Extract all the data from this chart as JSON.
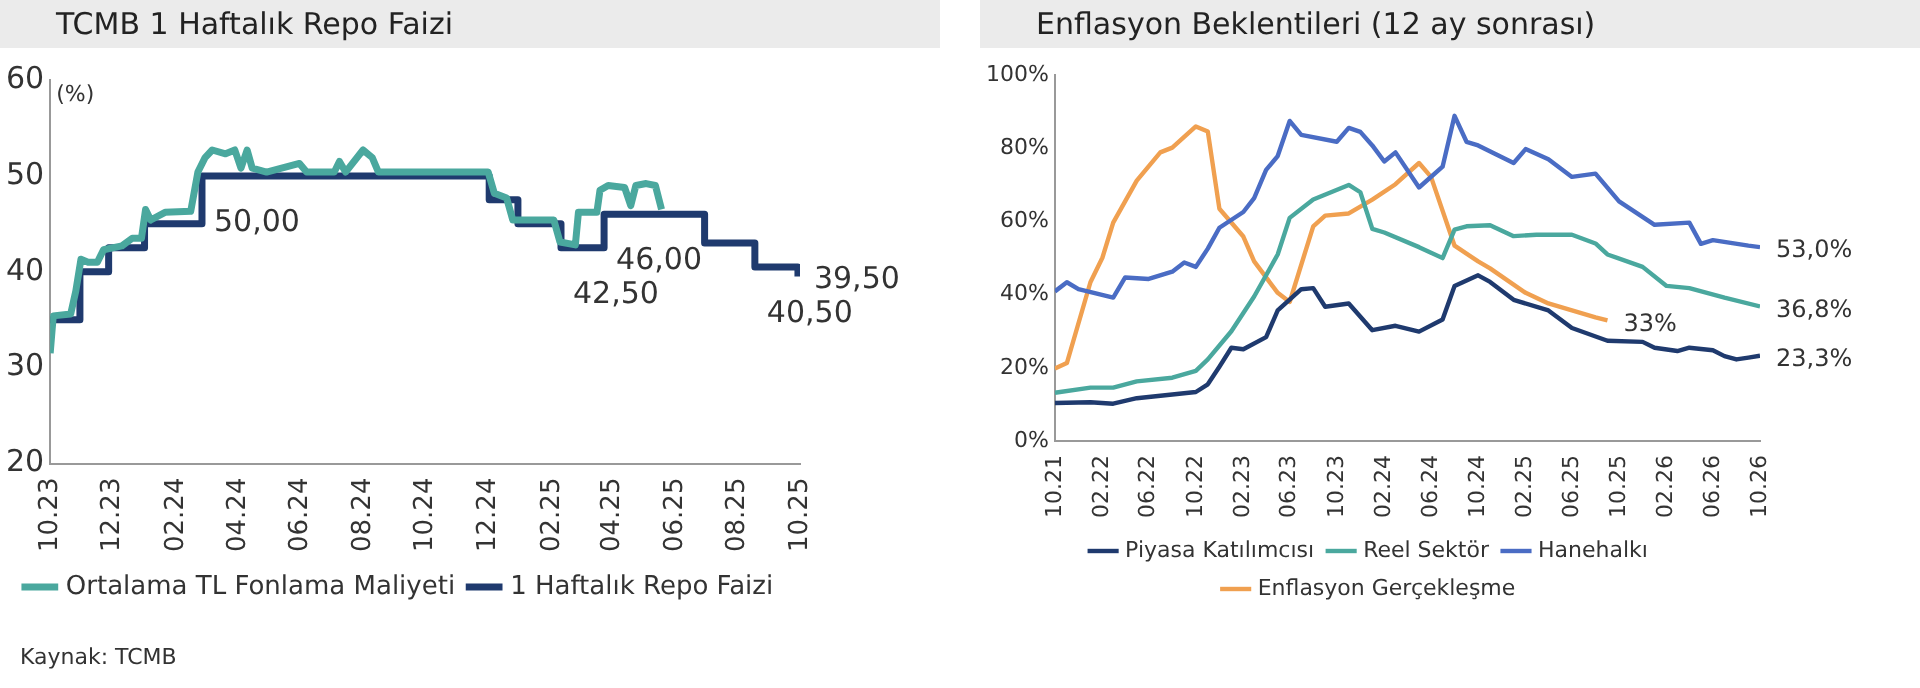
{
  "chart_data": [
    {
      "type": "line",
      "title": "TCMB 1 Haftalık Repo Faizi",
      "ylabel": "(%)",
      "legend": "bottom",
      "xlim": [
        "2023-10-25",
        "2025-10-25"
      ],
      "xticks": [
        {
          "value": "2023-10-25",
          "label": "10.23"
        },
        {
          "value": "2023-12-25",
          "label": "12.23"
        },
        {
          "value": "2024-02-25",
          "label": "02.24"
        },
        {
          "value": "2024-04-25",
          "label": "04.24"
        },
        {
          "value": "2024-06-25",
          "label": "06.24"
        },
        {
          "value": "2024-08-25",
          "label": "08.24"
        },
        {
          "value": "2024-10-25",
          "label": "10.24"
        },
        {
          "value": "2024-12-25",
          "label": "12.24"
        },
        {
          "value": "2025-02-25",
          "label": "02.25"
        },
        {
          "value": "2025-04-25",
          "label": "04.25"
        },
        {
          "value": "2025-06-25",
          "label": "06.25"
        },
        {
          "value": "2025-08-25",
          "label": "08.25"
        },
        {
          "value": "2025-10-25",
          "label": "10.25"
        }
      ],
      "ylim": [
        20,
        60
      ],
      "yticks": [
        20,
        30,
        40,
        50,
        60
      ],
      "series": [
        {
          "name": "Ortalama TL Fonlama Maliyeti",
          "type": "line",
          "color": "#4aa89e",
          "x": [
            "2023-10-25",
            "2023-10-28",
            "2023-11-14",
            "2023-11-19",
            "2023-11-24",
            "2023-12-01",
            "2023-12-10",
            "2023-12-16",
            "2024-01-03",
            "2024-01-13",
            "2024-01-22",
            "2024-01-26",
            "2024-01-31",
            "2024-02-14",
            "2024-03-10",
            "2024-03-17",
            "2024-03-24",
            "2024-03-31",
            "2024-04-13",
            "2024-04-22",
            "2024-04-28",
            "2024-05-04",
            "2024-05-09",
            "2024-05-23",
            "2024-06-24",
            "2024-07-01",
            "2024-07-28",
            "2024-08-02",
            "2024-08-08",
            "2024-08-25",
            "2024-09-03",
            "2024-09-09",
            "2024-12-25",
            "2024-12-31",
            "2025-01-12",
            "2025-01-18",
            "2025-02-27",
            "2025-03-05",
            "2025-03-20",
            "2025-03-23",
            "2025-04-10",
            "2025-04-13",
            "2025-04-21",
            "2025-05-07",
            "2025-05-13",
            "2025-05-18",
            "2025-05-28",
            "2025-06-06",
            "2025-06-12"
          ],
          "values": [
            31.5,
            35.4,
            35.6,
            38,
            41.3,
            41,
            41,
            42.3,
            42.7,
            43.5,
            43.5,
            46.5,
            45.4,
            46.2,
            46.3,
            50.4,
            51.9,
            52.7,
            52.3,
            52.7,
            50.8,
            52.7,
            50.8,
            50.4,
            51.3,
            50.4,
            50.4,
            51.5,
            50.4,
            52.7,
            51.9,
            50.4,
            50.4,
            48.2,
            47.7,
            45.4,
            45.4,
            43.1,
            42.8,
            46.2,
            46.2,
            48.5,
            49,
            48.8,
            46.9,
            49,
            49.2,
            49,
            46.5
          ]
        },
        {
          "name": "1 Haftalık Repo Faizi",
          "type": "step",
          "color": "#1f3a6e",
          "x": [
            "2023-10-25",
            "2023-11-23",
            "2023-12-21",
            "2024-01-25",
            "2024-03-21",
            "2024-12-26",
            "2025-01-23",
            "2025-03-06",
            "2025-04-17",
            "2025-07-24",
            "2025-09-11",
            "2025-10-23"
          ],
          "values": [
            35,
            40,
            42.5,
            45,
            50,
            47.5,
            45,
            42.5,
            46,
            43,
            40.5,
            39.5
          ],
          "value_labels": [
            null,
            null,
            null,
            null,
            "50,00",
            null,
            null,
            "42,50",
            "46,00",
            null,
            "40,50",
            "39,50"
          ]
        }
      ]
    },
    {
      "type": "line",
      "title": "Enflasyon Beklentileri (12 ay sonrası)",
      "legend": "bottom",
      "xlim": [
        "2021-10",
        "2026-10"
      ],
      "xticks": [
        {
          "value": "2021-10",
          "label": "10.21"
        },
        {
          "value": "2022-02",
          "label": "02.22"
        },
        {
          "value": "2022-06",
          "label": "06.22"
        },
        {
          "value": "2022-10",
          "label": "10.22"
        },
        {
          "value": "2023-02",
          "label": "02.23"
        },
        {
          "value": "2023-06",
          "label": "06.23"
        },
        {
          "value": "2023-10",
          "label": "10.23"
        },
        {
          "value": "2024-02",
          "label": "02.24"
        },
        {
          "value": "2024-06",
          "label": "06.24"
        },
        {
          "value": "2024-10",
          "label": "10.24"
        },
        {
          "value": "2025-02",
          "label": "02.25"
        },
        {
          "value": "2025-06",
          "label": "06.25"
        },
        {
          "value": "2025-10",
          "label": "10.25"
        },
        {
          "value": "2026-02",
          "label": "02.26"
        },
        {
          "value": "2026-06",
          "label": "06.26"
        },
        {
          "value": "2026-10",
          "label": "10.26"
        }
      ],
      "ylim": [
        0,
        100
      ],
      "yticks": [
        {
          "value": 0,
          "label": "0%"
        },
        {
          "value": 20,
          "label": "20%"
        },
        {
          "value": 40,
          "label": "40%"
        },
        {
          "value": 60,
          "label": "60%"
        },
        {
          "value": 80,
          "label": "80%"
        },
        {
          "value": 100,
          "label": "100%"
        }
      ],
      "annotations": [
        "Kaynak: TCMB"
      ],
      "series": [
        {
          "name": "Piyasa Katılımcısı",
          "color": "#1f3a6e",
          "x": [
            "2021-10",
            "2022-01",
            "2022-03",
            "2022-05",
            "2022-08",
            "2022-10",
            "2022-11",
            "2022-12",
            "2023-01",
            "2023-02",
            "2023-04",
            "2023-05",
            "2023-07",
            "2023-08",
            "2023-09",
            "2023-11",
            "2024-01",
            "2024-03",
            "2024-05",
            "2024-07",
            "2024-08",
            "2024-10",
            "2024-11",
            "2025-01",
            "2025-04",
            "2025-06",
            "2025-09",
            "2025-12",
            "2026-01",
            "2026-03",
            "2026-04",
            "2026-06",
            "2026-07",
            "2026-08",
            "2026-09",
            "2026-10"
          ],
          "values": [
            10.4,
            10.6,
            10.2,
            11.7,
            12.7,
            13.4,
            15.5,
            20.3,
            25.5,
            25.1,
            28.4,
            35.7,
            41.5,
            41.8,
            36.7,
            37.6,
            30.3,
            31.5,
            29.9,
            33.2,
            42.4,
            45.3,
            43.5,
            38.6,
            35.7,
            30.9,
            27.4,
            27.1,
            25.5,
            24.6,
            25.5,
            24.8,
            23.2,
            22.3,
            22.8,
            23.3
          ],
          "value_labels": [
            null,
            null,
            null,
            null,
            null,
            null,
            null,
            null,
            null,
            null,
            null,
            null,
            null,
            null,
            null,
            null,
            null,
            null,
            null,
            null,
            null,
            null,
            null,
            null,
            null,
            null,
            null,
            null,
            null,
            null,
            null,
            null,
            null,
            null,
            null,
            "23,3%"
          ]
        },
        {
          "name": "Reel Sektör",
          "color": "#4aa89e",
          "x": [
            "2021-10",
            "2022-01",
            "2022-03",
            "2022-05",
            "2022-08",
            "2022-10",
            "2022-11",
            "2023-01",
            "2023-03",
            "2023-05",
            "2023-06",
            "2023-08",
            "2023-11",
            "2023-12",
            "2024-01",
            "2024-02",
            "2024-05",
            "2024-07",
            "2024-08",
            "2024-09",
            "2024-11",
            "2025-01",
            "2025-03",
            "2025-06",
            "2025-08",
            "2025-09",
            "2025-12",
            "2026-02",
            "2026-04",
            "2026-07",
            "2026-10"
          ],
          "values": [
            13.2,
            14.6,
            14.6,
            16.3,
            17.3,
            19.2,
            22.3,
            30,
            39.5,
            51,
            61,
            66,
            70,
            68,
            58,
            57,
            53,
            50,
            57.8,
            58.7,
            59,
            56,
            56.4,
            56.4,
            54,
            51,
            47.6,
            42.4,
            41.8,
            39.2,
            36.8
          ],
          "value_labels": [
            null,
            null,
            null,
            null,
            null,
            null,
            null,
            null,
            null,
            null,
            null,
            null,
            null,
            null,
            null,
            null,
            null,
            null,
            null,
            null,
            null,
            null,
            null,
            null,
            null,
            null,
            null,
            null,
            null,
            null,
            "36,8%"
          ]
        },
        {
          "name": "Hanehalkı",
          "color": "#4a6cc4",
          "x": [
            "2021-10",
            "2021-11",
            "2021-12",
            "2022-03",
            "2022-04",
            "2022-06",
            "2022-08",
            "2022-09",
            "2022-10",
            "2022-11",
            "2022-12",
            "2023-02",
            "2023-03",
            "2023-04",
            "2023-05",
            "2023-06",
            "2023-07",
            "2023-10",
            "2023-11",
            "2023-12",
            "2024-01",
            "2024-02",
            "2024-03",
            "2024-05",
            "2024-07",
            "2024-08",
            "2024-09",
            "2024-10",
            "2025-01",
            "2025-02",
            "2025-04",
            "2025-06",
            "2025-08",
            "2025-10",
            "2026-01",
            "2026-04",
            "2026-05",
            "2026-06",
            "2026-09",
            "2026-10"
          ],
          "values": [
            40.9,
            43.4,
            41.5,
            39.2,
            44.7,
            44.3,
            46.3,
            48.8,
            47.6,
            52.6,
            58.3,
            62.6,
            66.4,
            74.1,
            77.9,
            87.5,
            83.7,
            81.8,
            85.6,
            84.5,
            80.8,
            76.4,
            78.9,
            69.3,
            75,
            88.9,
            81.8,
            80.8,
            76,
            79.8,
            77,
            72.2,
            73.1,
            65.5,
            59.1,
            59.7,
            53.9,
            54.9,
            53.4,
            53.0
          ],
          "value_labels": [
            null,
            null,
            null,
            null,
            null,
            null,
            null,
            null,
            null,
            null,
            null,
            null,
            null,
            null,
            null,
            null,
            null,
            null,
            null,
            null,
            null,
            null,
            null,
            null,
            null,
            null,
            null,
            null,
            null,
            null,
            null,
            null,
            null,
            null,
            null,
            null,
            null,
            null,
            null,
            "53,0%"
          ]
        },
        {
          "name": "Enflasyon Gerçekleşme",
          "color": "#f0a050",
          "x": [
            "2021-10",
            "2021-11",
            "2022-01",
            "2022-02",
            "2022-03",
            "2022-05",
            "2022-07",
            "2022-08",
            "2022-10",
            "2022-11",
            "2022-12",
            "2023-02",
            "2023-03",
            "2023-05",
            "2023-06",
            "2023-08",
            "2023-09",
            "2023-11",
            "2024-01",
            "2024-03",
            "2024-05",
            "2024-06",
            "2024-08",
            "2024-10",
            "2024-11",
            "2025-02",
            "2025-04",
            "2025-06",
            "2025-08",
            "2025-09"
          ],
          "values": [
            19.8,
            21.3,
            43.4,
            50.1,
            59.7,
            71.2,
            78.9,
            80.2,
            86,
            84.6,
            63.5,
            55.9,
            49.1,
            40.5,
            38,
            58.7,
            61.6,
            62.2,
            66,
            70.2,
            76,
            72.2,
            53.4,
            49.1,
            47.2,
            40.5,
            37.6,
            35.7,
            33.8,
            33
          ],
          "value_labels": [
            null,
            null,
            null,
            null,
            null,
            null,
            null,
            null,
            null,
            null,
            null,
            null,
            null,
            null,
            null,
            null,
            null,
            null,
            null,
            null,
            null,
            null,
            null,
            null,
            null,
            null,
            null,
            null,
            null,
            "33%"
          ]
        }
      ]
    }
  ]
}
